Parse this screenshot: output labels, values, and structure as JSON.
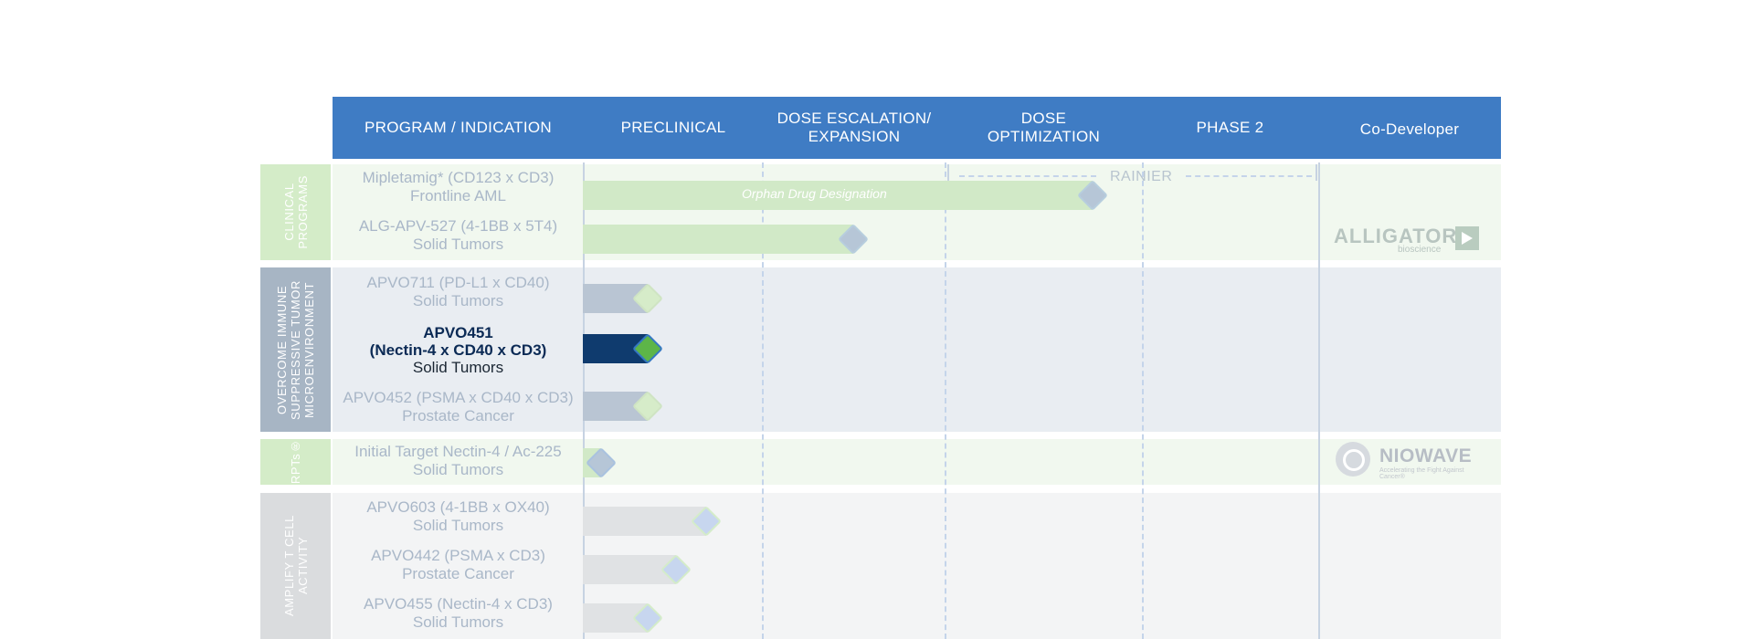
{
  "header": {
    "program_indication": "PROGRAM / INDICATION",
    "preclinical": "PRECLINICAL",
    "dose_escalation": "DOSE ESCALATION/\nEXPANSION",
    "dose_optimization": "DOSE\nOPTIMIZATION",
    "phase2": "PHASE 2",
    "co_developer": "Co-Developer"
  },
  "categories": {
    "clinical": "CLINICAL\nPROGRAMS",
    "overcome": "OVERCOME IMMUNE\nSUPPRESSIVE TUMOR\nMICROENVIRONMENT",
    "rpt": "RPTs®",
    "amplify": "AMPLIFY T CELL\nACTIVITY"
  },
  "programs": [
    {
      "line1": "Mipletamig* (CD123 x CD3)",
      "line2": "Frontline AML"
    },
    {
      "line1": "ALG-APV-527 (4-1BB x 5T4)",
      "line2": "Solid Tumors"
    },
    {
      "line1": "APVO711 (PD-L1 x CD40)",
      "line2": "Solid Tumors"
    },
    {
      "line1": "APVO451",
      "line1b": "(Nectin-4 x CD40 x CD3)",
      "line2": "Solid Tumors"
    },
    {
      "line1": "APVO452 (PSMA x CD40 x CD3)",
      "line2": "Prostate Cancer"
    },
    {
      "line1": "Initial Target Nectin-4 / Ac-225",
      "line2": "Solid Tumors"
    },
    {
      "line1": "APVO603 (4-1BB x OX40)",
      "line2": "Solid Tumors"
    },
    {
      "line1": "APVO442 (PSMA x CD3)",
      "line2": "Prostate Cancer"
    },
    {
      "line1": "APVO455 (Nectin-4 x CD3)",
      "line2": "Solid Tumors"
    }
  ],
  "annotations": {
    "orphan": "Orphan Drug Designation",
    "rainier": "RAINIER"
  },
  "codevelopers": {
    "alligator_name": "ALLIGATOR",
    "alligator_sub": "bioscience",
    "niowave_name": "NIOWAVE",
    "niowave_sub": "Accelerating the Fight Against Cancer®"
  },
  "colors": {
    "header_bg": "#3f7cc4",
    "clinical_band": "#f1f8ef",
    "clinical_cat": "#d4ecc8",
    "overcome_band": "#e9edf2",
    "overcome_cat": "#a7b5c4",
    "rpt_band": "#f1f8ef",
    "rpt_cat": "#d4ecc8",
    "amplify_band": "#f3f4f5",
    "amplify_cat": "#dadcde"
  },
  "chart_data": {
    "type": "bar",
    "stages": [
      "PRECLINICAL",
      "DOSE ESCALATION/ EXPANSION",
      "DOSE OPTIMIZATION",
      "PHASE 2"
    ],
    "progress_unit": "stages completed (0 = start of Preclinical, 4 = end of Phase 2)",
    "rows": [
      {
        "program": "Mipletamig* (CD123 x CD3)",
        "progress": 2.75,
        "bar_color": "#d1e9c7",
        "diamond_fill": "#b6c6d7",
        "diamond_edge": "#b7cede"
      },
      {
        "program": "ALG-APV-527 (4-1BB x 5T4)",
        "progress": 1.5,
        "bar_color": "#d1e9c7",
        "diamond_fill": "#b6c6d7",
        "diamond_edge": "#b7cede"
      },
      {
        "program": "APVO711 (PD-L1 x CD40)",
        "progress": 0.36,
        "bar_color": "#b9c5d3",
        "diamond_fill": "#d6ecc9",
        "diamond_edge": "#cfe4c3"
      },
      {
        "program": "APVO451 (Nectin-4 x CD40 x CD3)",
        "progress": 0.36,
        "bar_color": "#0f3b6e",
        "diamond_fill": "#5db548",
        "diamond_edge": "#3578c2"
      },
      {
        "program": "APVO452 (PSMA x CD40 x CD3)",
        "progress": 0.36,
        "bar_color": "#b9c5d3",
        "diamond_fill": "#d6ecc9",
        "diamond_edge": "#cfe4c3"
      },
      {
        "program": "Initial Target Nectin-4 / Ac-225",
        "progress": 0.1,
        "bar_color": "#d1e9c7",
        "diamond_fill": "#b6c6d7",
        "diamond_edge": "#a9c2df"
      },
      {
        "program": "APVO603 (4-1BB x OX40)",
        "progress": 0.69,
        "bar_color": "#e0e2e4",
        "diamond_fill": "#c7d6ef",
        "diamond_edge": "#d4ecc9"
      },
      {
        "program": "APVO442 (PSMA x CD3)",
        "progress": 0.52,
        "bar_color": "#e0e2e4",
        "diamond_fill": "#c7d6ef",
        "diamond_edge": "#d4ecc9"
      },
      {
        "program": "APVO455 (Nectin-4 x CD3)",
        "progress": 0.36,
        "bar_color": "#e0e2e4",
        "diamond_fill": "#c7d6ef",
        "diamond_edge": "#d4ecc9"
      }
    ]
  }
}
